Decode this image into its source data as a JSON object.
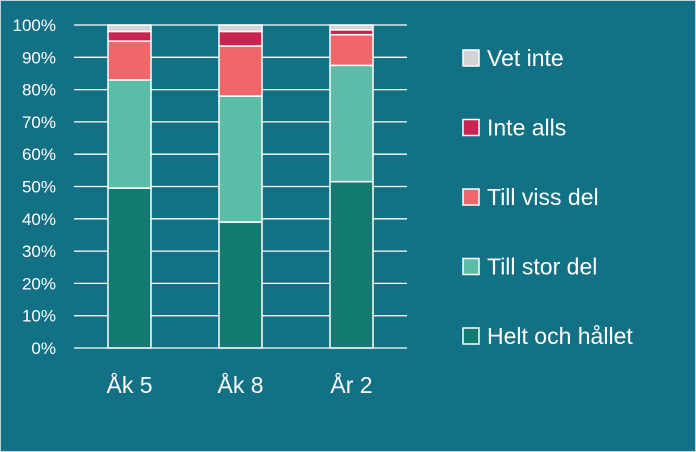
{
  "chart_data": {
    "type": "bar",
    "stacked": true,
    "categories": [
      "Åk 5",
      "Åk 8",
      "År 2"
    ],
    "series": [
      {
        "name": "Helt och hållet",
        "color": "#137a72",
        "values": [
          49.5,
          39,
          51.5
        ]
      },
      {
        "name": "Till stor del",
        "color": "#5bbda8",
        "values": [
          33.5,
          39,
          36
        ]
      },
      {
        "name": "Till viss del",
        "color": "#ef6769",
        "values": [
          12,
          15.5,
          9.5
        ]
      },
      {
        "name": "Inte alls",
        "color": "#c9234f",
        "values": [
          3,
          4.5,
          1.5
        ]
      },
      {
        "name": "Vet inte",
        "color": "#d4d4d4",
        "values": [
          2,
          2,
          1.5
        ]
      }
    ],
    "ylim": [
      0,
      100
    ],
    "yticks": [
      "0%",
      "10%",
      "20%",
      "30%",
      "40%",
      "50%",
      "60%",
      "70%",
      "80%",
      "90%",
      "100%"
    ],
    "grid": true,
    "legend": "right",
    "title": "",
    "xlabel": "",
    "ylabel": ""
  }
}
